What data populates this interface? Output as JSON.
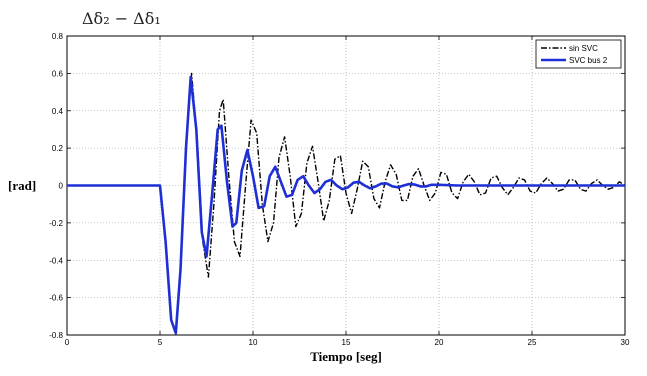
{
  "chart_data": {
    "type": "line",
    "title": "Δδ₂ − Δδ₁",
    "xlabel": "Tiempo [seg]",
    "ylabel": "[rad]",
    "xlim": [
      0,
      30
    ],
    "ylim": [
      -0.8,
      0.8
    ],
    "x_ticks": [
      0,
      5,
      10,
      15,
      20,
      25,
      30
    ],
    "y_ticks": [
      -0.8,
      -0.6,
      -0.4,
      -0.2,
      0,
      0.2,
      0.4,
      0.6,
      0.8
    ],
    "x_tick_labels": [
      "0",
      "5",
      "10",
      "15",
      "20",
      "25",
      "30"
    ],
    "y_tick_labels": [
      "-0.8",
      "-0.6",
      "-0.4",
      "-0.2",
      "0",
      "0.2",
      "0.4",
      "0.6",
      "0.8"
    ],
    "grid": true,
    "legend_position": "top-right",
    "series": [
      {
        "name": "sin SVC",
        "color": "#000000",
        "style": "dash-dot",
        "points": [
          [
            0,
            0
          ],
          [
            5,
            0
          ],
          [
            5.3,
            -0.3
          ],
          [
            5.6,
            -0.72
          ],
          [
            5.85,
            -0.78
          ],
          [
            6.1,
            -0.45
          ],
          [
            6.4,
            0.2
          ],
          [
            6.7,
            0.6
          ],
          [
            7.0,
            0.25
          ],
          [
            7.3,
            -0.3
          ],
          [
            7.6,
            -0.49
          ],
          [
            7.9,
            -0.1
          ],
          [
            8.2,
            0.4
          ],
          [
            8.4,
            0.46
          ],
          [
            8.7,
            0.05
          ],
          [
            9.0,
            -0.3
          ],
          [
            9.3,
            -0.38
          ],
          [
            9.6,
            0.0
          ],
          [
            9.9,
            0.35
          ],
          [
            10.2,
            0.28
          ],
          [
            10.5,
            -0.1
          ],
          [
            10.8,
            -0.3
          ],
          [
            11.1,
            -0.2
          ],
          [
            11.4,
            0.15
          ],
          [
            11.7,
            0.26
          ],
          [
            12.0,
            0.05
          ],
          [
            12.3,
            -0.22
          ],
          [
            12.6,
            -0.15
          ],
          [
            12.9,
            0.12
          ],
          [
            13.2,
            0.21
          ],
          [
            13.5,
            0.02
          ],
          [
            13.8,
            -0.19
          ],
          [
            14.1,
            -0.08
          ],
          [
            14.4,
            0.14
          ],
          [
            14.7,
            0.16
          ],
          [
            15.0,
            -0.04
          ],
          [
            15.3,
            -0.15
          ],
          [
            15.6,
            -0.02
          ],
          [
            15.9,
            0.13
          ],
          [
            16.2,
            0.1
          ],
          [
            16.5,
            -0.07
          ],
          [
            16.8,
            -0.12
          ],
          [
            17.1,
            0.02
          ],
          [
            17.4,
            0.11
          ],
          [
            17.7,
            0.06
          ],
          [
            18.0,
            -0.08
          ],
          [
            18.3,
            -0.08
          ],
          [
            18.6,
            0.05
          ],
          [
            18.9,
            0.09
          ],
          [
            19.2,
            0.0
          ],
          [
            19.5,
            -0.08
          ],
          [
            19.8,
            -0.04
          ],
          [
            20.1,
            0.07
          ],
          [
            20.4,
            0.06
          ],
          [
            20.7,
            -0.04
          ],
          [
            21.0,
            -0.07
          ],
          [
            21.3,
            0.02
          ],
          [
            21.6,
            0.06
          ],
          [
            21.9,
            0.02
          ],
          [
            22.2,
            -0.05
          ],
          [
            22.5,
            -0.04
          ],
          [
            22.8,
            0.04
          ],
          [
            23.1,
            0.05
          ],
          [
            23.4,
            -0.01
          ],
          [
            23.7,
            -0.05
          ],
          [
            24.0,
            -0.01
          ],
          [
            24.3,
            0.04
          ],
          [
            24.6,
            0.03
          ],
          [
            24.9,
            -0.03
          ],
          [
            25.2,
            -0.04
          ],
          [
            25.5,
            0.01
          ],
          [
            25.8,
            0.04
          ],
          [
            26.1,
            0.01
          ],
          [
            26.4,
            -0.03
          ],
          [
            26.7,
            -0.02
          ],
          [
            27.0,
            0.03
          ],
          [
            27.3,
            0.03
          ],
          [
            27.6,
            -0.02
          ],
          [
            27.9,
            -0.03
          ],
          [
            28.2,
            0.01
          ],
          [
            28.5,
            0.03
          ],
          [
            28.8,
            0.0
          ],
          [
            29.1,
            -0.02
          ],
          [
            29.4,
            -0.01
          ],
          [
            29.7,
            0.02
          ],
          [
            30,
            0.0
          ]
        ]
      },
      {
        "name": "SVC bus 2",
        "color": "#1f2fd6",
        "style": "solid",
        "points": [
          [
            0,
            0
          ],
          [
            5,
            0
          ],
          [
            5.3,
            -0.3
          ],
          [
            5.6,
            -0.72
          ],
          [
            5.85,
            -0.79
          ],
          [
            6.1,
            -0.45
          ],
          [
            6.4,
            0.2
          ],
          [
            6.65,
            0.58
          ],
          [
            6.95,
            0.3
          ],
          [
            7.25,
            -0.25
          ],
          [
            7.5,
            -0.38
          ],
          [
            7.8,
            -0.05
          ],
          [
            8.1,
            0.3
          ],
          [
            8.3,
            0.32
          ],
          [
            8.6,
            0.02
          ],
          [
            8.9,
            -0.22
          ],
          [
            9.1,
            -0.2
          ],
          [
            9.4,
            0.08
          ],
          [
            9.7,
            0.19
          ],
          [
            10.0,
            0.05
          ],
          [
            10.3,
            -0.12
          ],
          [
            10.6,
            -0.11
          ],
          [
            10.9,
            0.05
          ],
          [
            11.2,
            0.1
          ],
          [
            11.5,
            0.02
          ],
          [
            11.8,
            -0.06
          ],
          [
            12.1,
            -0.05
          ],
          [
            12.4,
            0.03
          ],
          [
            12.7,
            0.05
          ],
          [
            13.0,
            0.0
          ],
          [
            13.3,
            -0.04
          ],
          [
            13.6,
            -0.02
          ],
          [
            13.9,
            0.02
          ],
          [
            14.2,
            0.03
          ],
          [
            14.5,
            0.0
          ],
          [
            14.8,
            -0.02
          ],
          [
            15.1,
            -0.01
          ],
          [
            15.4,
            0.015
          ],
          [
            15.7,
            0.02
          ],
          [
            16.0,
            0.0
          ],
          [
            16.3,
            -0.015
          ],
          [
            16.6,
            -0.005
          ],
          [
            16.9,
            0.01
          ],
          [
            17.2,
            0.01
          ],
          [
            17.5,
            -0.005
          ],
          [
            17.8,
            -0.01
          ],
          [
            18.1,
            0.0
          ],
          [
            18.4,
            0.008
          ],
          [
            18.7,
            0.005
          ],
          [
            19.0,
            -0.005
          ],
          [
            19.3,
            -0.005
          ],
          [
            19.6,
            0.004
          ],
          [
            20,
            0.004
          ],
          [
            21,
            0.0
          ],
          [
            22,
            0.0
          ],
          [
            23,
            0.0
          ],
          [
            24,
            0.0
          ],
          [
            25,
            0.0
          ],
          [
            26,
            0.0
          ],
          [
            27,
            0.0
          ],
          [
            28,
            0.0
          ],
          [
            29,
            0.0
          ],
          [
            30,
            0.0
          ]
        ]
      }
    ]
  }
}
